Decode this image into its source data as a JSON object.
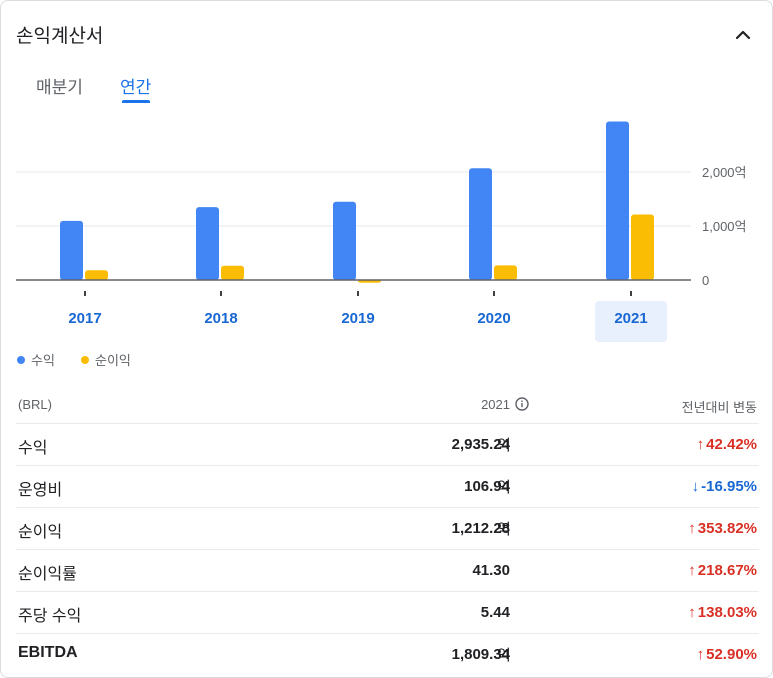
{
  "header": {
    "title": "손익계산서"
  },
  "tabs": [
    {
      "label": "매분기",
      "selected": false
    },
    {
      "label": "연간",
      "selected": true
    }
  ],
  "colors": {
    "revenue": "#4285f4",
    "net_income": "#fbbc04",
    "accent": "#1a73e8",
    "up": "#d93025",
    "down": "#1967d2"
  },
  "chart_data": {
    "type": "bar",
    "categories": [
      "2017",
      "2018",
      "2019",
      "2020",
      "2021"
    ],
    "series": [
      {
        "name": "수익",
        "values": [
          1095,
          1350,
          1450,
          2070,
          2935.24
        ]
      },
      {
        "name": "순이익",
        "values": [
          180,
          265,
          -50,
          270,
          1212.28
        ]
      }
    ],
    "y_ticks": [
      "0",
      "1,000억",
      "2,000억"
    ],
    "y_tick_values": [
      0,
      1000,
      2000
    ],
    "ylim": [
      -150,
      3050
    ],
    "selected_category": "2021",
    "legend_position": "bottom-left"
  },
  "legend": [
    {
      "label": "수익",
      "icon": "blue-dot"
    },
    {
      "label": "순이익",
      "icon": "yellow-dot"
    }
  ],
  "table": {
    "headers": {
      "currency": "(BRL)",
      "year": "2021",
      "change": "전년대비 변동"
    },
    "rows": [
      {
        "label": "수익",
        "value": "2,935.24",
        "unit": "억",
        "change": "42.42%",
        "direction": "up"
      },
      {
        "label": "운영비",
        "value": "106.94",
        "unit": "억",
        "change": "-16.95%",
        "direction": "down"
      },
      {
        "label": "순이익",
        "value": "1,212.28",
        "unit": "억",
        "change": "353.82%",
        "direction": "up"
      },
      {
        "label": "순이익률",
        "value": "41.30",
        "unit": "",
        "change": "218.67%",
        "direction": "up"
      },
      {
        "label": "주당 수익",
        "value": "5.44",
        "unit": "",
        "change": "138.03%",
        "direction": "up"
      },
      {
        "label": "EBITDA",
        "value": "1,809.34",
        "unit": "억",
        "change": "52.90%",
        "direction": "up"
      }
    ]
  }
}
